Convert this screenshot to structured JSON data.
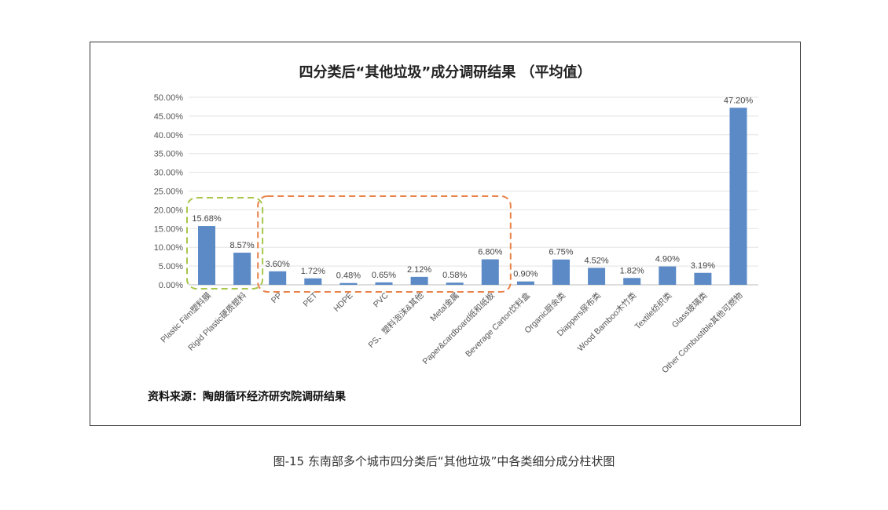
{
  "chart_data": {
    "type": "bar",
    "title": "四分类后“其他垃圾”成分调研结果 （平均值）",
    "categories": [
      "Plastic Film塑料膜",
      "Rigid Plastic硬质塑料",
      "PP",
      "PET",
      "HDPE",
      "PVC",
      "PS、塑料泡沫&其他",
      "Metal金属",
      "Paper&cardboard纸和纸板",
      "Beverage Carton饮料盒",
      "Organic厨余类",
      "Diappers尿布类",
      "Wood Bamboo木竹类",
      "Textile纺织类",
      "Glass玻璃类",
      "Other Combustible其他可燃物"
    ],
    "values": [
      15.68,
      8.57,
      3.6,
      1.72,
      0.48,
      0.65,
      2.12,
      0.58,
      6.8,
      0.9,
      6.75,
      4.52,
      1.82,
      4.9,
      3.19,
      47.2
    ],
    "data_labels": [
      "15.68%",
      "8.57%",
      "3.60%",
      "1.72%",
      "0.48%",
      "0.65%",
      "2.12%",
      "0.58%",
      "6.80%",
      "0.90%",
      "6.75%",
      "4.52%",
      "1.82%",
      "4.90%",
      "3.19%",
      "47.20%"
    ],
    "yticks": [
      "0.00%",
      "5.00%",
      "10.00%",
      "15.00%",
      "20.00%",
      "25.00%",
      "30.00%",
      "35.00%",
      "40.00%",
      "45.00%",
      "50.00%"
    ],
    "ylim": [
      0,
      50
    ],
    "xlabel": "",
    "ylabel": "",
    "grid": true,
    "bar_color": "#5b8ac6",
    "highlight_groups": [
      {
        "categories": [
          0,
          1
        ],
        "color": "#a8c64a"
      },
      {
        "categories": [
          2,
          3,
          4,
          5,
          6,
          7,
          8
        ],
        "color": "#e8834a"
      }
    ]
  },
  "source": "资料来源：陶朗循环经济研究院调研结果",
  "caption": "图-15 东南部多个城市四分类后“其他垃圾”中各类细分成分柱状图"
}
